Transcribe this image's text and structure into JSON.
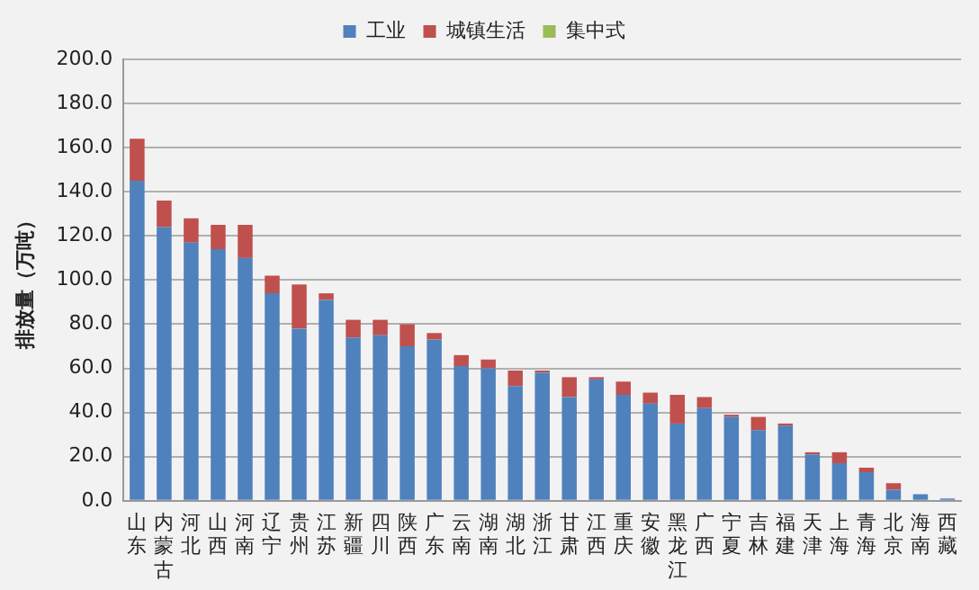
{
  "chart_data": {
    "type": "bar",
    "stacked": true,
    "ylabel": "排放量（万吨）",
    "categories": [
      "山东",
      "内蒙古",
      "河北",
      "山西",
      "河南",
      "辽宁",
      "贵州",
      "江苏",
      "新疆",
      "四川",
      "陕西",
      "广东",
      "云南",
      "湖南",
      "湖北",
      "浙江",
      "甘肃",
      "江西",
      "重庆",
      "安徽",
      "黑龙江",
      "广西",
      "宁夏",
      "吉林",
      "福建",
      "天津",
      "上海",
      "青海",
      "北京",
      "海南",
      "西藏"
    ],
    "series": [
      {
        "name": "工业",
        "color": "#4f81bd",
        "values": [
          145,
          124,
          117,
          114,
          110,
          94,
          78,
          91,
          74,
          75,
          70,
          73,
          61,
          60,
          52,
          58,
          47,
          55,
          48,
          44,
          35,
          42,
          38,
          32,
          34,
          21,
          17,
          13,
          5,
          3,
          1
        ]
      },
      {
        "name": "城镇生活",
        "color": "#c0504d",
        "values": [
          19,
          12,
          11,
          11,
          15,
          8,
          20,
          3,
          8,
          7,
          10,
          3,
          5,
          4,
          7,
          1,
          9,
          1,
          6,
          5,
          13,
          5,
          1,
          6,
          1,
          1,
          5,
          2,
          3,
          0,
          0
        ]
      },
      {
        "name": "集中式",
        "color": "#9bbb59",
        "values": [
          0,
          0,
          0,
          0,
          0,
          0,
          0,
          0,
          0,
          0,
          0,
          0,
          0,
          0,
          0,
          0,
          0,
          0,
          0,
          0,
          0,
          0,
          0,
          0,
          0,
          0,
          0,
          0,
          0,
          0,
          0
        ]
      }
    ],
    "ylim": [
      0,
      200
    ],
    "yticks": [
      {
        "value": 0,
        "label": "0.0"
      },
      {
        "value": 20,
        "label": "20.0"
      },
      {
        "value": 40,
        "label": "40.0"
      },
      {
        "value": 60,
        "label": "60.0"
      },
      {
        "value": 80,
        "label": "80.0"
      },
      {
        "value": 100,
        "label": "100.0"
      },
      {
        "value": 120,
        "label": "120.0"
      },
      {
        "value": 140,
        "label": "140.0"
      },
      {
        "value": 160,
        "label": "160.0"
      },
      {
        "value": 180,
        "label": "180.0"
      },
      {
        "value": 200,
        "label": "200.0"
      }
    ],
    "grid": "y",
    "legend": "top"
  }
}
